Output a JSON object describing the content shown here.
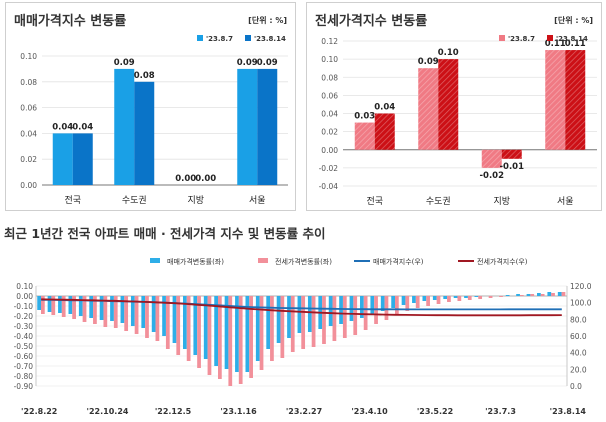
{
  "chart_data": [
    {
      "type": "bar",
      "title": "매매가격지수 변동률",
      "unit_label": "[단위 : %]",
      "categories": [
        "전국",
        "수도권",
        "지방",
        "서울"
      ],
      "series": [
        {
          "name": "'23.8.7",
          "color": "#1aa0e6",
          "values": [
            0.04,
            0.09,
            0.0,
            0.09
          ],
          "labels": [
            "0.04",
            "0.09",
            "0.00",
            "0.09"
          ]
        },
        {
          "name": "'23.8.14",
          "color": "#0a74c8",
          "values": [
            0.04,
            0.08,
            0.0,
            0.09
          ],
          "labels": [
            "0.04",
            "0.08",
            "0.00",
            "0.09"
          ]
        }
      ],
      "ylim": [
        0,
        0.1
      ],
      "yticks": [
        0.0,
        0.02,
        0.04,
        0.06,
        0.08,
        0.1
      ],
      "ytick_labels": [
        "0.00",
        "0.02",
        "0.04",
        "0.06",
        "0.08",
        "0.10"
      ],
      "legend": "top-right"
    },
    {
      "type": "bar",
      "title": "전세가격지수 변동률",
      "unit_label": "[단위 : %]",
      "categories": [
        "전국",
        "수도권",
        "지방",
        "서울"
      ],
      "series": [
        {
          "name": "'23.8.7",
          "color": "#f07a84",
          "values": [
            0.03,
            0.09,
            -0.02,
            0.11
          ],
          "labels": [
            "0.03",
            "0.09",
            "-0.02",
            "0.11"
          ]
        },
        {
          "name": "'23.8.14",
          "color": "#cc1016",
          "values": [
            0.04,
            0.1,
            -0.01,
            0.11
          ],
          "labels": [
            "0.04",
            "0.10",
            "-0.01",
            "0.11"
          ]
        }
      ],
      "ylim": [
        -0.04,
        0.12
      ],
      "yticks": [
        -0.04,
        -0.02,
        0.0,
        0.02,
        0.04,
        0.06,
        0.08,
        0.1,
        0.12
      ],
      "ytick_labels": [
        "-0.04",
        "-0.02",
        "0.00",
        "0.02",
        "0.04",
        "0.06",
        "0.08",
        "0.10",
        "0.12"
      ],
      "legend": "top-right"
    },
    {
      "type": "bar-line",
      "title": "최근 1년간 전국 아파트 매매 · 전세가격 지수 및 변동률 추이",
      "x_labels": [
        "'22.8.22",
        "'22.10.24",
        "'22.12.5",
        "'23.1.16",
        "'23.2.27",
        "'23.4.10",
        "'23.5.22",
        "'23.7.3",
        "'23.8.14"
      ],
      "legend_labels": [
        "매매가격변동률(좌)",
        "전세가격변동률(좌)",
        "매매가격지수(우)",
        "전세가격지수(우)"
      ],
      "colors": {
        "sale_rate": "#2eaee8",
        "rent_rate": "#f2909a",
        "sale_index": "#1f6fb6",
        "rent_index": "#a01822"
      },
      "left_axis": {
        "ylim": [
          -0.9,
          0.1
        ],
        "ticks": [
          0.1,
          0.0,
          -0.1,
          -0.2,
          -0.3,
          -0.4,
          -0.5,
          -0.6,
          -0.7,
          -0.8,
          -0.9
        ],
        "tick_labels": [
          "0.10",
          "0.00",
          "-0.10",
          "-0.20",
          "-0.30",
          "-0.40",
          "-0.50",
          "-0.60",
          "-0.70",
          "-0.80",
          "-0.90"
        ]
      },
      "right_axis": {
        "ylim": [
          0,
          120
        ],
        "ticks": [
          120,
          100,
          80,
          60,
          40,
          20,
          0
        ],
        "tick_labels": [
          "120.0",
          "100.0",
          "80.0",
          "60.0",
          "40.0",
          "20.0",
          "0.0"
        ]
      },
      "sale_rate": [
        -0.14,
        -0.16,
        -0.17,
        -0.18,
        -0.2,
        -0.22,
        -0.24,
        -0.25,
        -0.27,
        -0.3,
        -0.32,
        -0.36,
        -0.4,
        -0.47,
        -0.53,
        -0.59,
        -0.63,
        -0.7,
        -0.73,
        -0.76,
        -0.76,
        -0.65,
        -0.53,
        -0.47,
        -0.42,
        -0.37,
        -0.36,
        -0.33,
        -0.3,
        -0.28,
        -0.25,
        -0.22,
        -0.19,
        -0.15,
        -0.12,
        -0.09,
        -0.07,
        -0.05,
        -0.04,
        -0.03,
        -0.02,
        -0.02,
        -0.01,
        0.0,
        0.0,
        0.01,
        0.02,
        0.02,
        0.03,
        0.04,
        0.04
      ],
      "rent_rate": [
        -0.18,
        -0.19,
        -0.21,
        -0.23,
        -0.26,
        -0.28,
        -0.31,
        -0.32,
        -0.35,
        -0.38,
        -0.42,
        -0.45,
        -0.53,
        -0.59,
        -0.65,
        -0.72,
        -0.79,
        -0.83,
        -0.9,
        -0.88,
        -0.82,
        -0.74,
        -0.65,
        -0.62,
        -0.56,
        -0.53,
        -0.51,
        -0.48,
        -0.45,
        -0.42,
        -0.39,
        -0.34,
        -0.28,
        -0.24,
        -0.18,
        -0.15,
        -0.12,
        -0.1,
        -0.08,
        -0.06,
        -0.05,
        -0.04,
        -0.03,
        -0.02,
        -0.01,
        0.0,
        0.01,
        0.02,
        0.02,
        0.03,
        0.04
      ],
      "sale_index": [
        103.5,
        103.3,
        103.1,
        102.9,
        102.7,
        102.4,
        102.1,
        101.8,
        101.5,
        101.2,
        100.8,
        100.4,
        100.0,
        99.5,
        98.8,
        98.2,
        97.5,
        96.8,
        96.1,
        95.4,
        94.8,
        94.3,
        93.9,
        93.6,
        93.4,
        93.2,
        93.0,
        92.8,
        92.6,
        92.4,
        92.3,
        92.2,
        92.1,
        92.0,
        92.0,
        91.9,
        91.9,
        91.9,
        91.9,
        91.9,
        91.9,
        91.9,
        91.9,
        91.9,
        91.9,
        92.0,
        92.0,
        92.0,
        92.1,
        92.1,
        92.1
      ],
      "rent_index": [
        104.0,
        103.8,
        103.6,
        103.4,
        103.1,
        102.8,
        102.5,
        102.2,
        101.8,
        101.4,
        100.9,
        100.4,
        99.9,
        99.2,
        98.4,
        97.5,
        96.6,
        95.6,
        94.6,
        93.6,
        92.7,
        91.8,
        91.0,
        90.3,
        89.6,
        89.0,
        88.4,
        87.9,
        87.4,
        86.9,
        86.5,
        86.2,
        85.9,
        85.7,
        85.5,
        85.3,
        85.2,
        85.1,
        85.0,
        85.0,
        84.9,
        84.9,
        84.9,
        84.9,
        84.9,
        84.9,
        84.9,
        85.0,
        85.0,
        85.0,
        85.1
      ]
    }
  ]
}
